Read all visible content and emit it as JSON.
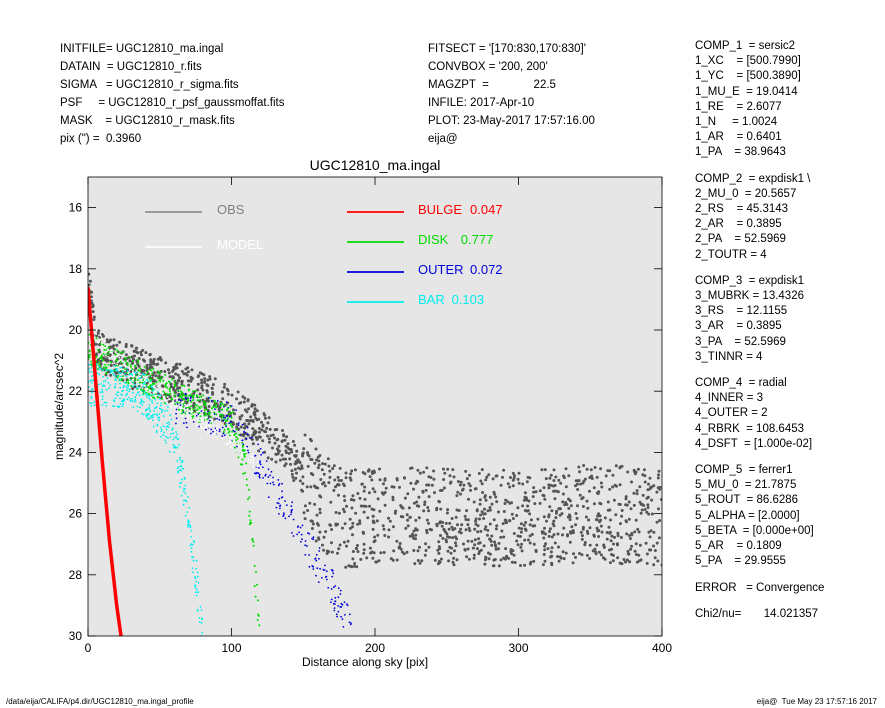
{
  "header_left": [
    "INITFILE= UGC12810_ma.ingal",
    "DATAIN  = UGC12810_r.fits",
    "SIGMA   = UGC12810_r_sigma.fits",
    "PSF     = UGC12810_r_psf_gaussmoffat.fits",
    "MASK    = UGC12810_r_mask.fits",
    "pix (\") =  0.3960"
  ],
  "header_mid": [
    "FITSECT = '[170:830,170:830]'",
    "CONVBOX = '200, 200'",
    "MAGZPT  =              22.5",
    "INFILE: 2017-Apr-10",
    "PLOT: 23-May-2017 17:57:16.00",
    "eija@"
  ],
  "params": [
    [
      "COMP_1  = sersic2",
      "1_XC    = [500.7990]",
      "1_YC    = [500.3890]",
      "1_MU_E  = 19.0414",
      "1_RE    = 2.6077",
      "1_N     = 1.0024",
      "1_AR    = 0.6401",
      "1_PA    = 38.9643"
    ],
    [
      "COMP_2  = expdisk1 \\",
      "2_MU_0  = 20.5657",
      "2_RS    = 45.3143",
      "2_AR    = 0.3895",
      "2_PA    = 52.5969",
      "2_TOUTR = 4"
    ],
    [
      "COMP_3  = expdisk1",
      "3_MUBRK = 13.4326",
      "3_RS    = 12.1155",
      "3_AR    = 0.3895",
      "3_PA    = 52.5969",
      "3_TINNR = 4"
    ],
    [
      "COMP_4  = radial",
      "4_INNER = 3",
      "4_OUTER = 2",
      "4_RBRK  = 108.6453",
      "4_DSFT  = [1.000e-02]"
    ],
    [
      "COMP_5  = ferrer1",
      "5_MU_0  = 21.7875",
      "5_ROUT  = 86.6286",
      "5_ALPHA = [2.0000]",
      "5_BETA  = [0.000e+00]",
      "5_AR    = 0.1809",
      "5_PA    = 29.9555"
    ],
    [
      "ERROR   = Convergence"
    ],
    [
      "Chi2/nu=       14.021357"
    ]
  ],
  "footer": {
    "left": "/data/eija/CALIFA/p4.dir/UGC12810_ma.ingal_profile",
    "right": "eija@  Tue May 23 17:57:16 2017"
  },
  "chart_data": {
    "type": "scatter",
    "title": "UGC12810_ma.ingal",
    "xlabel": "Distance along sky [pix]",
    "ylabel": "magnitude/arcsec^2",
    "xlim": [
      0,
      400
    ],
    "ylim": [
      30,
      15
    ],
    "y_inverted": true,
    "xticks": [
      0,
      100,
      200,
      300,
      400
    ],
    "yticks": [
      16,
      18,
      20,
      22,
      24,
      26,
      28,
      30
    ],
    "background": "#e6e6e6",
    "legend_left": [
      {
        "name": "OBS",
        "color": "#808080"
      },
      {
        "name": "MODEL",
        "color": "#ffffff"
      }
    ],
    "legend_right": [
      {
        "name": "BULGE",
        "value": "0.047",
        "color": "#ff0000"
      },
      {
        "name": "DISK",
        "value": "0.777",
        "color": "#00dd00"
      },
      {
        "name": "OUTER",
        "value": "0.072",
        "color": "#0000dd"
      },
      {
        "name": "BAR",
        "value": "0.103",
        "color": "#00eeee"
      }
    ],
    "series": [
      {
        "name": "OBS",
        "color": "#555555",
        "x": [
          0,
          5,
          10,
          20,
          40,
          60,
          80,
          100,
          120,
          140,
          160,
          180,
          200,
          250,
          300,
          350,
          400
        ],
        "y": [
          18.5,
          20.3,
          20.8,
          21.0,
          21.4,
          21.7,
          22.1,
          22.5,
          23.3,
          24.0,
          25.5,
          26.2,
          26.1,
          26.1,
          26.2,
          26.0,
          26.1
        ]
      },
      {
        "name": "MODEL",
        "color": "#ffffff",
        "x": [
          0,
          5,
          10,
          20,
          40,
          60,
          80,
          100,
          110,
          120
        ],
        "y": [
          18.5,
          20.0,
          20.5,
          21.0,
          21.8,
          22.4,
          23.0,
          23.6,
          24.0,
          24.6
        ]
      },
      {
        "name": "BULGE",
        "color": "#ff0000",
        "x": [
          0,
          5,
          10,
          15,
          20,
          23
        ],
        "y": [
          18.6,
          21.5,
          24.3,
          26.9,
          29.0,
          30.0
        ]
      },
      {
        "name": "DISK",
        "color": "#00dd00",
        "x": [
          0,
          20,
          40,
          60,
          80,
          100,
          110,
          120
        ],
        "y": [
          20.6,
          21.1,
          21.6,
          22.1,
          22.6,
          23.0,
          24.5,
          30.0
        ]
      },
      {
        "name": "OUTER",
        "color": "#0000dd",
        "x": [
          60,
          100,
          110,
          130,
          150,
          170,
          185
        ],
        "y": [
          22.5,
          23.0,
          23.6,
          25.2,
          26.8,
          28.4,
          30.0
        ]
      },
      {
        "name": "BAR",
        "color": "#00eeee",
        "x": [
          0,
          20,
          40,
          60,
          70,
          80
        ],
        "y": [
          21.8,
          21.8,
          22.1,
          23.5,
          26.0,
          30.0
        ]
      }
    ]
  }
}
